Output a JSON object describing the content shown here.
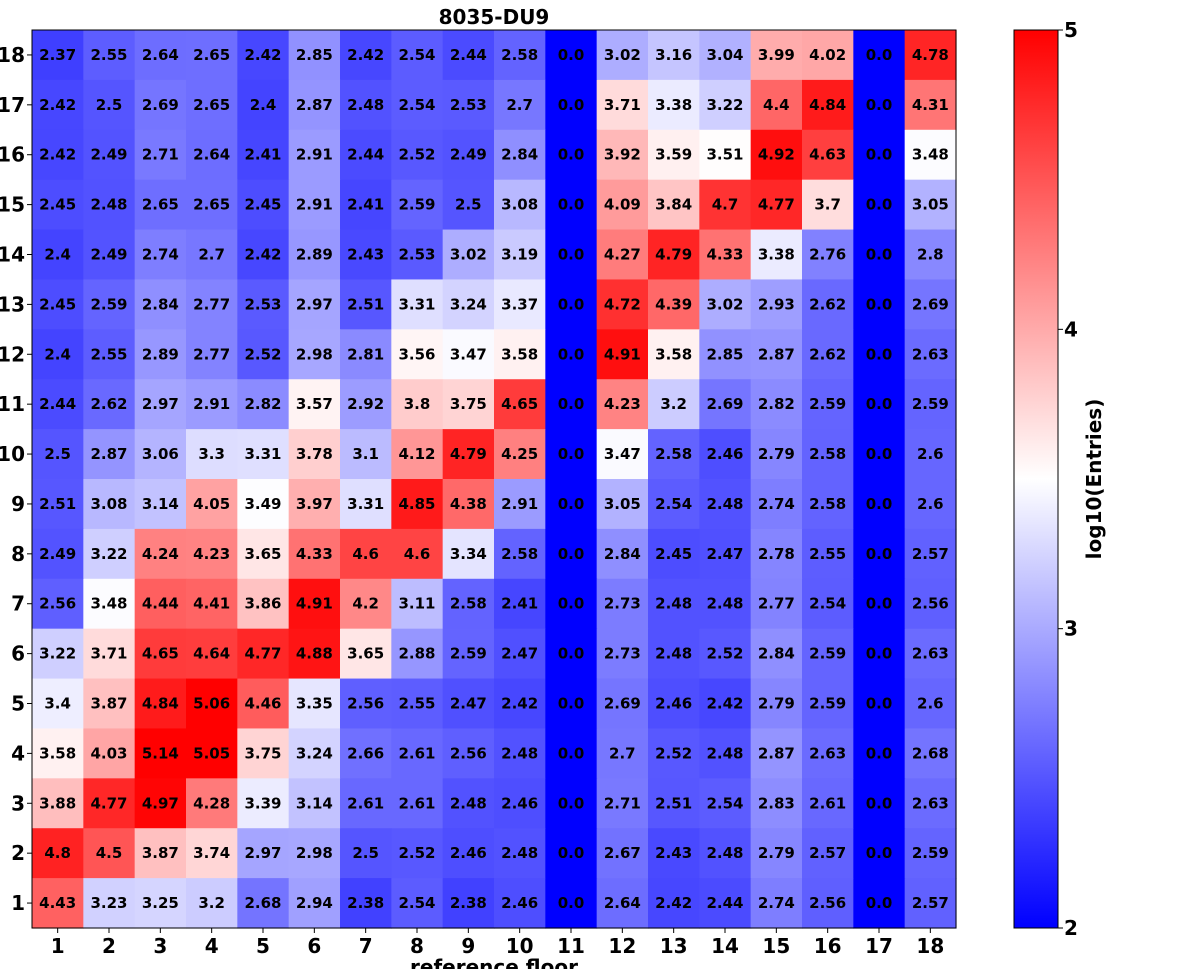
{
  "chart_data": {
    "type": "heatmap",
    "title": "8035-DU9",
    "xlabel": "reference floor",
    "ylabel": "",
    "x_categories": [
      "1",
      "2",
      "3",
      "4",
      "5",
      "6",
      "7",
      "8",
      "9",
      "10",
      "11",
      "12",
      "13",
      "14",
      "15",
      "16",
      "17",
      "18"
    ],
    "y_categories": [
      "18",
      "17",
      "16",
      "15",
      "14",
      "13",
      "12",
      "11",
      "10",
      "9",
      "8",
      "7",
      "6",
      "5",
      "4",
      "3",
      "2",
      "1"
    ],
    "values": [
      [
        "2.37",
        "2.55",
        "2.64",
        "2.65",
        "2.42",
        "2.85",
        "2.42",
        "2.54",
        "2.44",
        "2.58",
        "0.0",
        "3.02",
        "3.16",
        "3.04",
        "3.99",
        "4.02",
        "0.0",
        "4.78"
      ],
      [
        "2.42",
        "2.5",
        "2.69",
        "2.65",
        "2.4",
        "2.87",
        "2.48",
        "2.54",
        "2.53",
        "2.7",
        "0.0",
        "3.71",
        "3.38",
        "3.22",
        "4.4",
        "4.84",
        "0.0",
        "4.31"
      ],
      [
        "2.42",
        "2.49",
        "2.71",
        "2.64",
        "2.41",
        "2.91",
        "2.44",
        "2.52",
        "2.49",
        "2.84",
        "0.0",
        "3.92",
        "3.59",
        "3.51",
        "4.92",
        "4.63",
        "0.0",
        "3.48"
      ],
      [
        "2.45",
        "2.48",
        "2.65",
        "2.65",
        "2.45",
        "2.91",
        "2.41",
        "2.59",
        "2.5",
        "3.08",
        "0.0",
        "4.09",
        "3.84",
        "4.7",
        "4.77",
        "3.7",
        "0.0",
        "3.05"
      ],
      [
        "2.4",
        "2.49",
        "2.74",
        "2.7",
        "2.42",
        "2.89",
        "2.43",
        "2.53",
        "3.02",
        "3.19",
        "0.0",
        "4.27",
        "4.79",
        "4.33",
        "3.38",
        "2.76",
        "0.0",
        "2.8"
      ],
      [
        "2.45",
        "2.59",
        "2.84",
        "2.77",
        "2.53",
        "2.97",
        "2.51",
        "3.31",
        "3.24",
        "3.37",
        "0.0",
        "4.72",
        "4.39",
        "3.02",
        "2.93",
        "2.62",
        "0.0",
        "2.69"
      ],
      [
        "2.4",
        "2.55",
        "2.89",
        "2.77",
        "2.52",
        "2.98",
        "2.81",
        "3.56",
        "3.47",
        "3.58",
        "0.0",
        "4.91",
        "3.58",
        "2.85",
        "2.87",
        "2.62",
        "0.0",
        "2.63"
      ],
      [
        "2.44",
        "2.62",
        "2.97",
        "2.91",
        "2.82",
        "3.57",
        "2.92",
        "3.8",
        "3.75",
        "4.65",
        "0.0",
        "4.23",
        "3.2",
        "2.69",
        "2.82",
        "2.59",
        "0.0",
        "2.59"
      ],
      [
        "2.5",
        "2.87",
        "3.06",
        "3.3",
        "3.31",
        "3.78",
        "3.1",
        "4.12",
        "4.79",
        "4.25",
        "0.0",
        "3.47",
        "2.58",
        "2.46",
        "2.79",
        "2.58",
        "0.0",
        "2.6"
      ],
      [
        "2.51",
        "3.08",
        "3.14",
        "4.05",
        "3.49",
        "3.97",
        "3.31",
        "4.85",
        "4.38",
        "2.91",
        "0.0",
        "3.05",
        "2.54",
        "2.48",
        "2.74",
        "2.58",
        "0.0",
        "2.6"
      ],
      [
        "2.49",
        "3.22",
        "4.24",
        "4.23",
        "3.65",
        "4.33",
        "4.6",
        "4.6",
        "3.34",
        "2.58",
        "0.0",
        "2.84",
        "2.45",
        "2.47",
        "2.78",
        "2.55",
        "0.0",
        "2.57"
      ],
      [
        "2.56",
        "3.48",
        "4.44",
        "4.41",
        "3.86",
        "4.91",
        "4.2",
        "3.11",
        "2.58",
        "2.41",
        "0.0",
        "2.73",
        "2.48",
        "2.48",
        "2.77",
        "2.54",
        "0.0",
        "2.56"
      ],
      [
        "3.22",
        "3.71",
        "4.65",
        "4.64",
        "4.77",
        "4.88",
        "3.65",
        "2.88",
        "2.59",
        "2.47",
        "0.0",
        "2.73",
        "2.48",
        "2.52",
        "2.84",
        "2.59",
        "0.0",
        "2.63"
      ],
      [
        "3.4",
        "3.87",
        "4.84",
        "5.06",
        "4.46",
        "3.35",
        "2.56",
        "2.55",
        "2.47",
        "2.42",
        "0.0",
        "2.69",
        "2.46",
        "2.42",
        "2.79",
        "2.59",
        "0.0",
        "2.6"
      ],
      [
        "3.58",
        "4.03",
        "5.14",
        "5.05",
        "3.75",
        "3.24",
        "2.66",
        "2.61",
        "2.56",
        "2.48",
        "0.0",
        "2.7",
        "2.52",
        "2.48",
        "2.87",
        "2.63",
        "0.0",
        "2.68"
      ],
      [
        "3.88",
        "4.77",
        "4.97",
        "4.28",
        "3.39",
        "3.14",
        "2.61",
        "2.61",
        "2.48",
        "2.46",
        "0.0",
        "2.71",
        "2.51",
        "2.54",
        "2.83",
        "2.61",
        "0.0",
        "2.63"
      ],
      [
        "4.8",
        "4.5",
        "3.87",
        "3.74",
        "2.97",
        "2.98",
        "2.5",
        "2.52",
        "2.46",
        "2.48",
        "0.0",
        "2.67",
        "2.43",
        "2.48",
        "2.79",
        "2.57",
        "0.0",
        "2.59"
      ],
      [
        "4.43",
        "3.23",
        "3.25",
        "3.2",
        "2.68",
        "2.94",
        "2.38",
        "2.54",
        "2.38",
        "2.46",
        "0.0",
        "2.64",
        "2.42",
        "2.44",
        "2.74",
        "2.56",
        "0.0",
        "2.57"
      ]
    ],
    "colorbar": {
      "label": "log10(Entries)",
      "range": [
        2,
        5
      ],
      "ticks": [
        "2",
        "3",
        "4",
        "5"
      ],
      "colormap": "bwr",
      "colors": {
        "low": "#0000ff",
        "mid": "#ffffff",
        "high": "#ff0000"
      }
    },
    "grid": false
  }
}
